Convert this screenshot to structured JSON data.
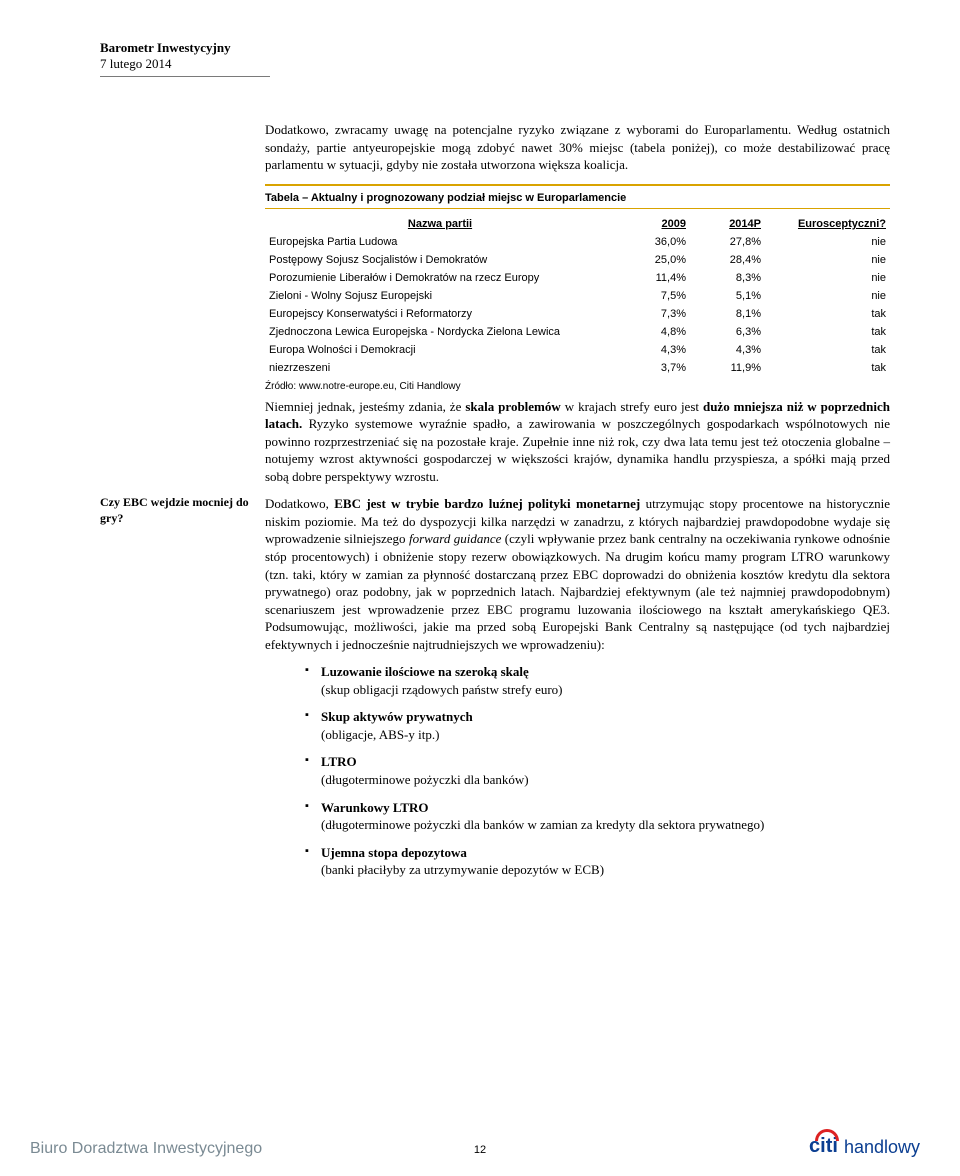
{
  "header": {
    "title": "Barometr Inwestycyjny",
    "date": "7 lutego 2014"
  },
  "intro": {
    "p1a": "Dodatkowo, zwracamy uwagę na potencjalne ryzyko związane z wyborami do Europarlamentu.",
    "p1b": " Według ostatnich sondaży, partie antyeuropejskie mogą zdobyć nawet 30% miejsc (tabela poniżej), co może destabilizować pracę parlamentu w sytuacji, gdyby nie została utworzona większa koalicja."
  },
  "table": {
    "title": "Tabela – Aktualny i prognozowany podział miejsc w Europarlamencie",
    "headers": {
      "name": "Nazwa partii",
      "c1": "2009",
      "c2": "2014P",
      "c3": "Eurosceptyczni?"
    },
    "rows": [
      {
        "name": "Europejska Partia Ludowa",
        "c1": "36,0%",
        "c2": "27,8%",
        "c3": "nie"
      },
      {
        "name": "Postępowy Sojusz Socjalistów i Demokratów",
        "c1": "25,0%",
        "c2": "28,4%",
        "c3": "nie"
      },
      {
        "name": "Porozumienie Liberałów i Demokratów na rzecz Europy",
        "c1": "11,4%",
        "c2": "8,3%",
        "c3": "nie"
      },
      {
        "name": "Zieloni - Wolny Sojusz Europejski",
        "c1": "7,5%",
        "c2": "5,1%",
        "c3": "nie"
      },
      {
        "name": "Europejscy Konserwatyści i Reformatorzy",
        "c1": "7,3%",
        "c2": "8,1%",
        "c3": "tak"
      },
      {
        "name": "Zjednoczona Lewica Europejska - Nordycka Zielona Lewica",
        "c1": "4,8%",
        "c2": "6,3%",
        "c3": "tak"
      },
      {
        "name": "Europa Wolności i Demokracji",
        "c1": "4,3%",
        "c2": "4,3%",
        "c3": "tak"
      },
      {
        "name": "niezrzeszeni",
        "c1": "3,7%",
        "c2": "11,9%",
        "c3": "tak"
      }
    ],
    "source": "Źródło: www.notre-europe.eu, Citi Handlowy"
  },
  "para2": {
    "a": "Niemniej jednak, jesteśmy zdania, że ",
    "b": "skala problemów",
    "c": " w krajach strefy euro jest ",
    "d": "dużo mniejsza niż w poprzednich latach.",
    "e": " Ryzyko systemowe wyraźnie spadło, a zawirowania w poszczególnych gospodarkach wspólnotowych nie powinno rozprzestrzeniać się na pozostałe kraje. Zupełnie inne niż rok, czy dwa lata temu jest też otoczenia globalne – notujemy wzrost aktywności gospodarczej w większości krajów, dynamika handlu przyspiesza, a spółki mają przed sobą dobre perspektywy wzrostu."
  },
  "sidebar": {
    "label": "Czy EBC wejdzie mocniej do gry?"
  },
  "para3": {
    "a": "Dodatkowo, ",
    "b": "EBC jest w trybie bardzo luźnej polityki monetarnej",
    "c": " utrzymując stopy procentowe na historycznie niskim poziomie. Ma też do dyspozycji kilka narzędzi w zanadrzu, z których najbardziej prawdopodobne wydaje się wprowadzenie silniejszego ",
    "d": "forward guidance",
    "e": " (czyli wpływanie przez bank centralny na oczekiwania rynkowe odnośnie stóp procentowych) i obniżenie stopy rezerw obowiązkowych. Na drugim końcu mamy program LTRO warunkowy (tzn. taki, który w zamian za płynność dostarczaną przez EBC doprowadzi do obniżenia kosztów kredytu dla sektora prywatnego) oraz podobny, jak w poprzednich latach. Najbardziej efektywnym (ale też najmniej prawdopodobnym) scenariuszem jest wprowadzenie przez EBC programu luzowania ilościowego na kształt amerykańskiego QE3. Podsumowując, możliwości, jakie ma przed sobą Europejski Bank Centralny są następujące (od tych najbardziej efektywnych i jednocześnie najtrudniejszych we wprowadzeniu):"
  },
  "bullets": [
    {
      "t": "Luzowanie ilościowe na szeroką skalę",
      "s": "(skup obligacji rządowych państw strefy euro)"
    },
    {
      "t": "Skup aktywów prywatnych",
      "s": " (obligacje, ABS-y itp.)"
    },
    {
      "t": "LTRO",
      "s": "(długoterminowe pożyczki dla banków)"
    },
    {
      "t": "Warunkowy LTRO",
      "s": "(długoterminowe pożyczki dla banków w zamian za kredyty dla sektora prywatnego)"
    },
    {
      "t": "Ujemna stopa depozytowa",
      "s": "(banki płaciłyby za utrzymywanie depozytów w ECB)"
    }
  ],
  "footer": {
    "left": "Biuro Doradztwa Inwestycyjnego",
    "page": "12",
    "brand1": "citi",
    "brand2": "handlowy"
  }
}
